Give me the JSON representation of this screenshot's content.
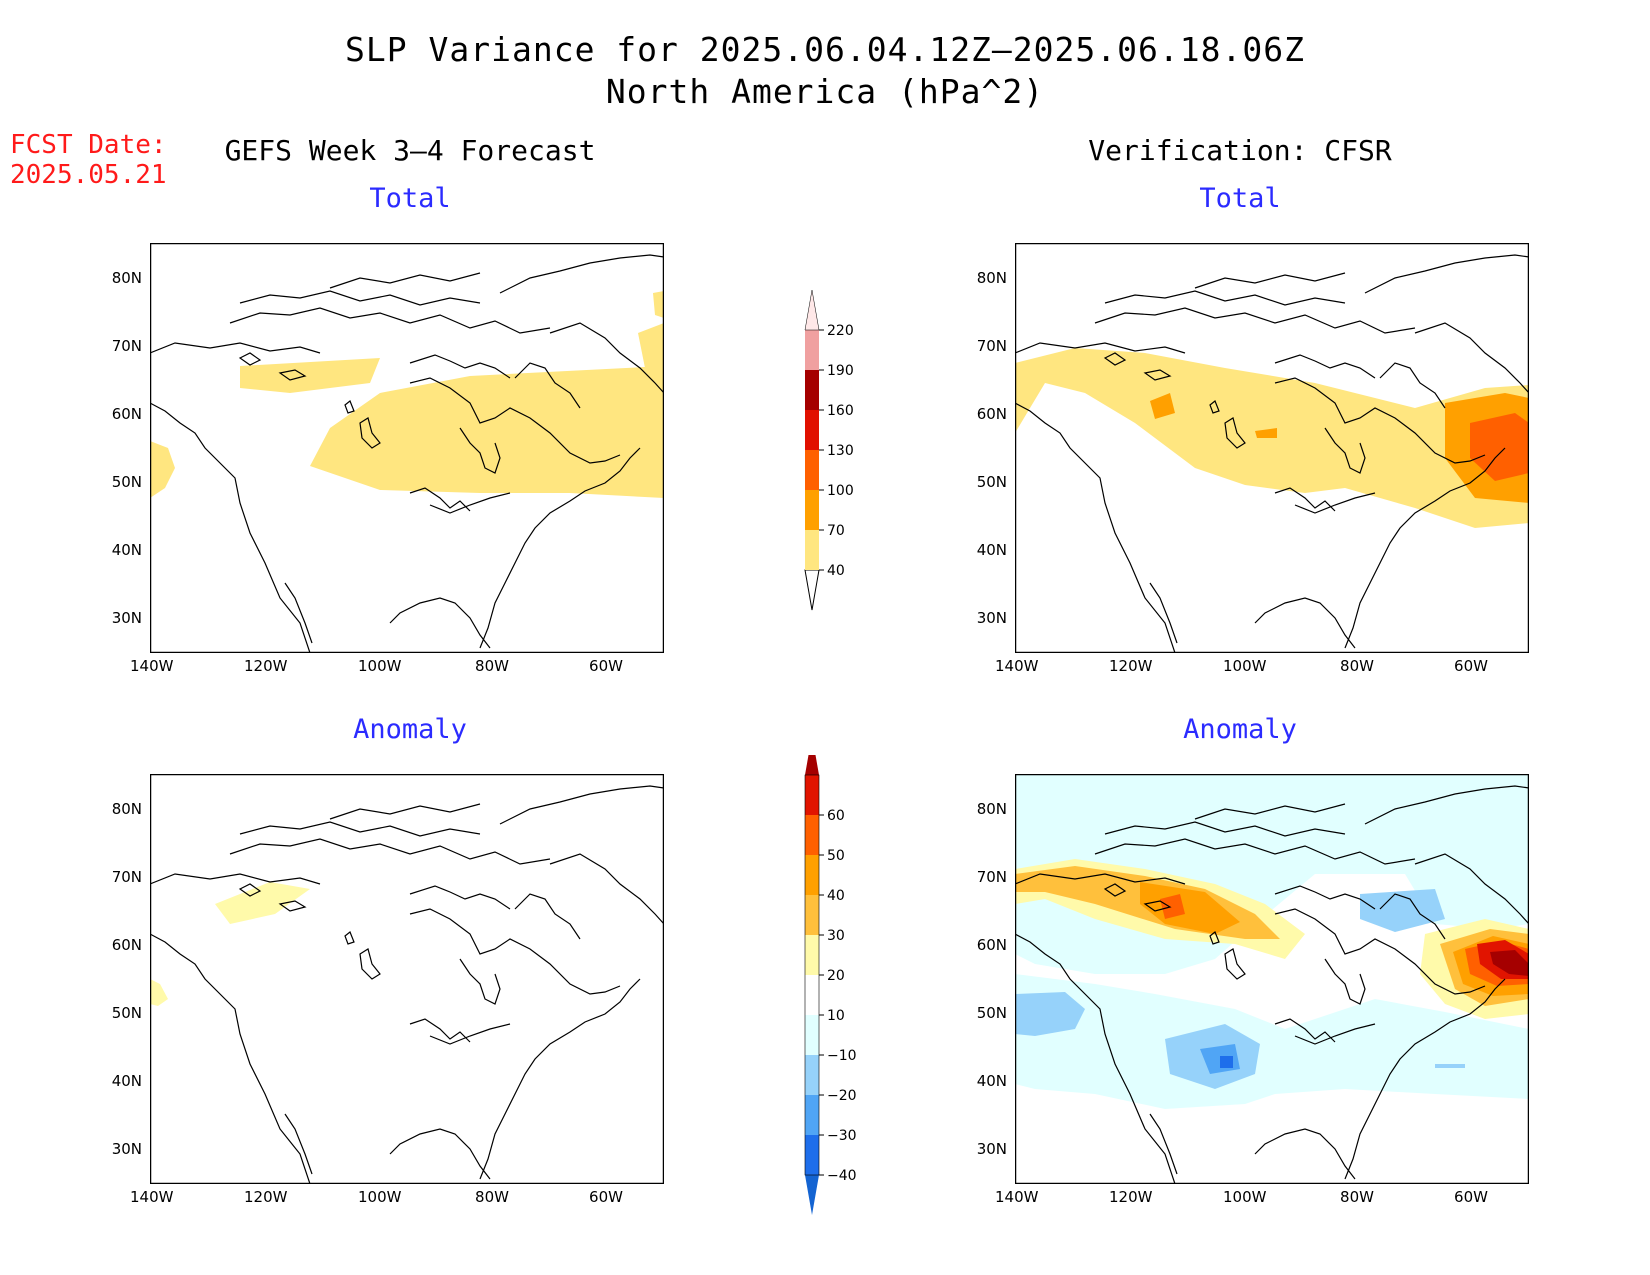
{
  "header": {
    "title": "SLP Variance for 2025.06.04.12Z–2025.06.18.06Z",
    "subtitle": "North America (hPa^2)",
    "fcst_label": "FCST Date:",
    "fcst_date": "2025.05.21"
  },
  "columns": {
    "left": "GEFS Week 3–4 Forecast",
    "right": "Verification: CFSR"
  },
  "panels": [
    {
      "id": "fcst-total",
      "label": "Total"
    },
    {
      "id": "cfsr-total",
      "label": "Total"
    },
    {
      "id": "fcst-anomaly",
      "label": "Anomaly"
    },
    {
      "id": "cfsr-anomaly",
      "label": "Anomaly"
    }
  ],
  "axes": {
    "lon_ticks": [
      "140W",
      "120W",
      "100W",
      "80W",
      "60W"
    ],
    "lat_ticks": [
      "80N",
      "70N",
      "60N",
      "50N",
      "40N",
      "30N"
    ]
  },
  "colorbars": {
    "total": {
      "levels": [
        "40",
        "70",
        "100",
        "130",
        "160",
        "190",
        "220"
      ],
      "colors": [
        "#ffe680",
        "#ffa000",
        "#ff6000",
        "#e11000",
        "#a50000",
        "#f0a0a0",
        "#ffe8e8"
      ]
    },
    "anomaly": {
      "levels": [
        "−40",
        "−30",
        "−20",
        "−10",
        "10",
        "20",
        "30",
        "40",
        "50",
        "60"
      ],
      "colors": [
        "#1464d2",
        "#1e6eeb",
        "#50a5f5",
        "#96d2fa",
        "#e1ffff",
        "#ffffff",
        "#fffaaa",
        "#ffc03c",
        "#ffa000",
        "#ff6000",
        "#e11400",
        "#a50000"
      ]
    }
  }
}
